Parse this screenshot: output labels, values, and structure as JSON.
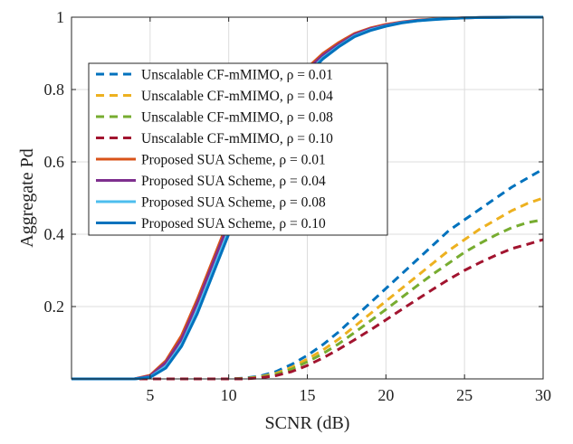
{
  "chart_data": {
    "type": "line",
    "title": "",
    "xlabel": "SCNR (dB)",
    "ylabel": "Aggregate Pd",
    "xlim": [
      0,
      30
    ],
    "ylim": [
      0,
      1
    ],
    "xticks": [
      5,
      10,
      15,
      20,
      25,
      30
    ],
    "yticks": [
      0.2,
      0.4,
      0.6,
      0.8,
      1
    ],
    "xtick_labels": [
      "5",
      "10",
      "15",
      "20",
      "25",
      "30"
    ],
    "ytick_labels": [
      "0.2",
      "0.4",
      "0.6",
      "0.8",
      "1"
    ],
    "grid": true,
    "legend_position": "upper-left",
    "x": [
      0,
      1,
      2,
      3,
      4,
      5,
      6,
      7,
      8,
      9,
      10,
      11,
      12,
      13,
      14,
      15,
      16,
      17,
      18,
      19,
      20,
      21,
      22,
      23,
      24,
      25,
      26,
      27,
      28,
      29,
      30
    ],
    "series": [
      {
        "name": "Unscalable CF-mMIMO, ρ = 0.01",
        "color": "#0072BD",
        "dash": "dashed",
        "values": [
          0,
          0,
          0,
          0,
          0,
          0,
          0,
          0,
          0,
          0,
          0,
          0.002,
          0.008,
          0.02,
          0.04,
          0.065,
          0.095,
          0.13,
          0.17,
          0.21,
          0.25,
          0.29,
          0.33,
          0.37,
          0.41,
          0.44,
          0.47,
          0.5,
          0.53,
          0.555,
          0.58
        ]
      },
      {
        "name": "Unscalable CF-mMIMO, ρ = 0.04",
        "color": "#EDB120",
        "dash": "dashed",
        "values": [
          0,
          0,
          0,
          0,
          0,
          0,
          0,
          0,
          0,
          0,
          0,
          0.001,
          0.006,
          0.015,
          0.032,
          0.055,
          0.08,
          0.11,
          0.145,
          0.18,
          0.215,
          0.25,
          0.285,
          0.32,
          0.355,
          0.385,
          0.415,
          0.44,
          0.465,
          0.485,
          0.5
        ]
      },
      {
        "name": "Unscalable CF-mMIMO, ρ = 0.08",
        "color": "#77AC30",
        "dash": "dashed",
        "values": [
          0,
          0,
          0,
          0,
          0,
          0,
          0,
          0,
          0,
          0,
          0,
          0.001,
          0.004,
          0.012,
          0.027,
          0.047,
          0.07,
          0.097,
          0.128,
          0.16,
          0.192,
          0.225,
          0.258,
          0.29,
          0.32,
          0.35,
          0.375,
          0.398,
          0.418,
          0.432,
          0.44
        ]
      },
      {
        "name": "Unscalable CF-mMIMO, ρ = 0.10",
        "color": "#A2142F",
        "dash": "dashed",
        "values": [
          0,
          0,
          0,
          0,
          0,
          0,
          0,
          0,
          0,
          0,
          0,
          0,
          0.003,
          0.009,
          0.02,
          0.037,
          0.058,
          0.082,
          0.108,
          0.135,
          0.163,
          0.192,
          0.22,
          0.248,
          0.275,
          0.3,
          0.322,
          0.342,
          0.36,
          0.372,
          0.385
        ]
      },
      {
        "name": "Proposed SUA Scheme, ρ = 0.01",
        "color": "#D95319",
        "dash": "solid",
        "values": [
          0,
          0,
          0,
          0,
          0,
          0.01,
          0.05,
          0.12,
          0.22,
          0.33,
          0.44,
          0.55,
          0.65,
          0.74,
          0.81,
          0.86,
          0.9,
          0.93,
          0.955,
          0.97,
          0.98,
          0.987,
          0.992,
          0.995,
          0.997,
          0.998,
          0.999,
          0.9995,
          1,
          1,
          1
        ]
      },
      {
        "name": "Proposed SUA Scheme, ρ = 0.04",
        "color": "#7E2F8E",
        "dash": "solid",
        "values": [
          0,
          0,
          0,
          0,
          0,
          0.008,
          0.045,
          0.11,
          0.21,
          0.32,
          0.43,
          0.54,
          0.64,
          0.73,
          0.8,
          0.855,
          0.895,
          0.925,
          0.952,
          0.968,
          0.978,
          0.986,
          0.991,
          0.994,
          0.997,
          0.998,
          0.999,
          0.9995,
          1,
          1,
          1
        ]
      },
      {
        "name": "Proposed SUA Scheme, ρ = 0.08",
        "color": "#4DBEEE",
        "dash": "solid",
        "values": [
          0,
          0,
          0,
          0,
          0,
          0.005,
          0.035,
          0.095,
          0.19,
          0.3,
          0.41,
          0.52,
          0.62,
          0.71,
          0.785,
          0.845,
          0.888,
          0.92,
          0.948,
          0.965,
          0.976,
          0.985,
          0.99,
          0.994,
          0.996,
          0.998,
          0.999,
          0.9995,
          1,
          1,
          1
        ]
      },
      {
        "name": "Proposed SUA Scheme, ρ = 0.10",
        "color": "#0072BD",
        "dash": "solid",
        "values": [
          0,
          0,
          0,
          0,
          0,
          0.004,
          0.03,
          0.09,
          0.18,
          0.29,
          0.4,
          0.51,
          0.61,
          0.7,
          0.78,
          0.84,
          0.885,
          0.918,
          0.946,
          0.963,
          0.975,
          0.984,
          0.99,
          0.993,
          0.996,
          0.998,
          0.999,
          0.9995,
          1,
          1,
          1
        ]
      }
    ]
  }
}
